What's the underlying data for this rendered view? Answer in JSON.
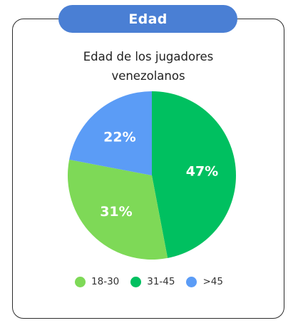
{
  "header": {
    "label": "Edad"
  },
  "chart_data": {
    "type": "pie",
    "title_lines": [
      "Edad de los jugadores",
      "venezolanos"
    ],
    "categories": [
      "18-30",
      "31-45",
      ">45"
    ],
    "values": [
      31,
      47,
      22
    ],
    "labels": [
      "31%",
      "47%",
      "22%"
    ],
    "colors": [
      "#7ed957",
      "#00c060",
      "#5b9cf6"
    ],
    "legend_position": "bottom"
  }
}
